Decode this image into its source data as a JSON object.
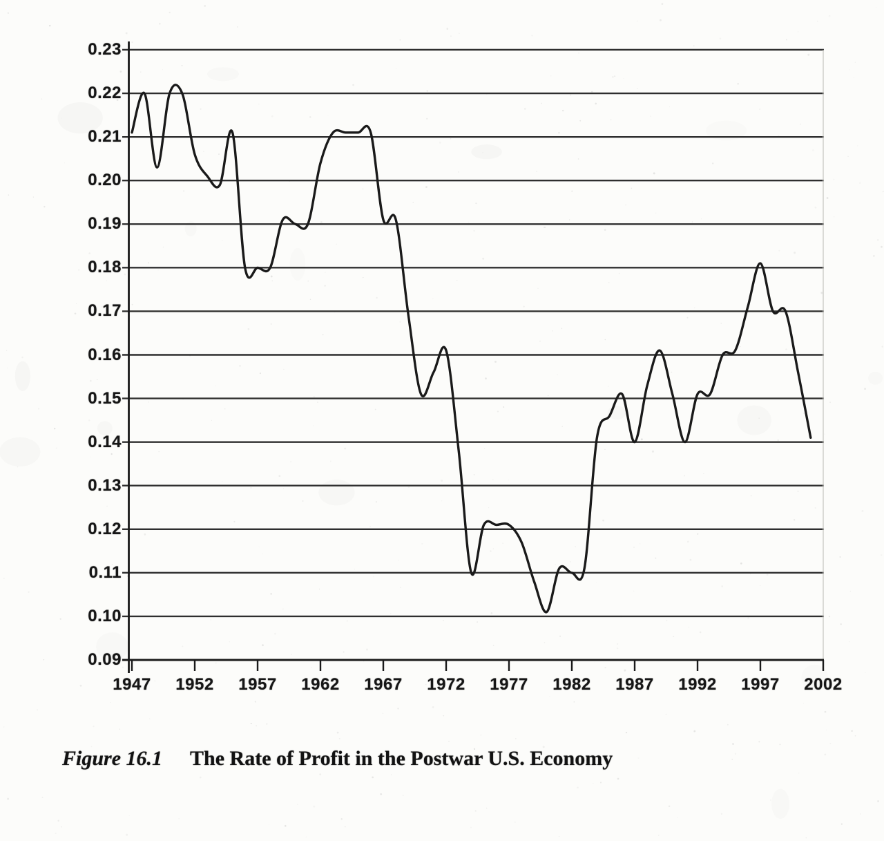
{
  "page": {
    "background": "#fcfcfa",
    "ink_color": "#1a1a1a",
    "grid_color": "#2e2e2e",
    "faint_border_color": "#c8c8c4"
  },
  "figure": {
    "caption_label": "Figure 16.1",
    "caption_title": "The Rate of Profit in the Postwar U.S. Economy"
  },
  "chart_data": {
    "type": "line",
    "title": "",
    "xlabel": "",
    "ylabel": "",
    "series_name": "rate-of-profit",
    "x": [
      1947,
      1948,
      1949,
      1950,
      1951,
      1952,
      1953,
      1954,
      1955,
      1956,
      1957,
      1958,
      1959,
      1960,
      1961,
      1962,
      1963,
      1964,
      1965,
      1966,
      1967,
      1968,
      1969,
      1970,
      1971,
      1972,
      1973,
      1974,
      1975,
      1976,
      1977,
      1978,
      1979,
      1980,
      1981,
      1982,
      1983,
      1984,
      1985,
      1986,
      1987,
      1988,
      1989,
      1990,
      1991,
      1992,
      1993,
      1994,
      1995,
      1996,
      1997,
      1998,
      1999,
      2000,
      2001
    ],
    "values": [
      0.211,
      0.22,
      0.203,
      0.22,
      0.22,
      0.206,
      0.201,
      0.199,
      0.211,
      0.18,
      0.18,
      0.18,
      0.191,
      0.19,
      0.19,
      0.204,
      0.211,
      0.211,
      0.211,
      0.211,
      0.191,
      0.191,
      0.169,
      0.151,
      0.156,
      0.161,
      0.138,
      0.11,
      0.121,
      0.121,
      0.121,
      0.117,
      0.108,
      0.101,
      0.111,
      0.11,
      0.111,
      0.141,
      0.146,
      0.151,
      0.14,
      0.153,
      0.161,
      0.151,
      0.14,
      0.151,
      0.151,
      0.16,
      0.161,
      0.171,
      0.181,
      0.17,
      0.17,
      0.156,
      0.141
    ],
    "ylim": [
      0.09,
      0.23
    ],
    "ytick_step": 0.01,
    "ytick_labels": [
      "0.23",
      "0.22",
      "0.21",
      "0.20",
      "0.19",
      "0.18",
      "0.17",
      "0.16",
      "0.15",
      "0.14",
      "0.13",
      "0.12",
      "0.11",
      "0.10",
      "0.09"
    ],
    "xtick_labels": [
      "1947",
      "1952",
      "1957",
      "1962",
      "1967",
      "1972",
      "1977",
      "1982",
      "1987",
      "1992",
      "1997",
      "2002"
    ],
    "xtick_years": [
      1947,
      1952,
      1957,
      1962,
      1967,
      1972,
      1977,
      1982,
      1987,
      1992,
      1997,
      2002
    ],
    "grid": "horizontal",
    "legend": "none",
    "line_smoothed": true,
    "line_color": "#1a1a1a"
  }
}
